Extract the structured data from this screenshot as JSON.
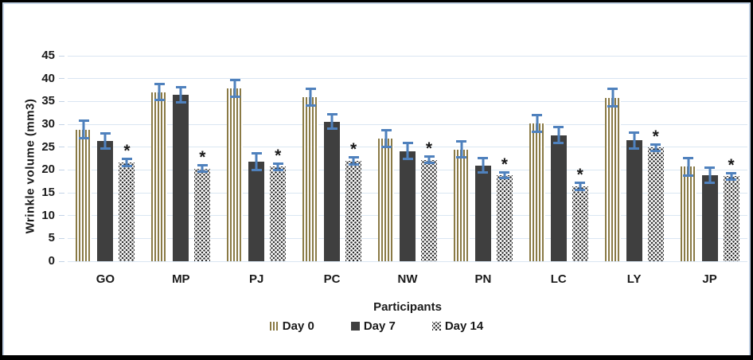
{
  "figure": {
    "border_color": "#000000",
    "inner_frame_color": "#c3d3e6",
    "background": "#ffffff"
  },
  "chart_data": {
    "type": "bar",
    "title": "",
    "xlabel": "Participants",
    "ylabel": "Wrinkle volume (mm3)",
    "ylim": [
      0,
      45
    ],
    "y_ticks": [
      0,
      5,
      10,
      15,
      20,
      25,
      30,
      35,
      40,
      45
    ],
    "grid": true,
    "legend_position": "bottom",
    "gridline_color": "#dae6f2",
    "error_bar_color": "#4f81bd",
    "significance_marker": "*",
    "categories": [
      "GO",
      "MP",
      "PJ",
      "PC",
      "NW",
      "PN",
      "LC",
      "LY",
      "JP"
    ],
    "series": [
      {
        "name": "Day 0",
        "pattern": "stripes",
        "color": "#8a7a45",
        "values": [
          28.8,
          37.0,
          37.8,
          36.0,
          26.8,
          24.5,
          30.1,
          35.8,
          20.7
        ],
        "errors": [
          2.2,
          2.0,
          2.1,
          2.1,
          2.1,
          2.0,
          2.1,
          2.2,
          2.2
        ],
        "significant": [
          false,
          false,
          false,
          false,
          false,
          false,
          false,
          false,
          false
        ]
      },
      {
        "name": "Day 7",
        "pattern": "solid",
        "color": "#3f3f3f",
        "values": [
          26.3,
          36.5,
          21.8,
          30.6,
          24.1,
          21.0,
          27.6,
          26.5,
          18.8
        ],
        "errors": [
          1.9,
          1.9,
          2.1,
          1.9,
          2.0,
          1.9,
          2.0,
          2.0,
          1.9
        ],
        "significant": [
          false,
          false,
          false,
          false,
          false,
          false,
          false,
          false,
          false
        ]
      },
      {
        "name": "Day 14",
        "pattern": "dots",
        "color": "#2b2b2b",
        "values": [
          21.6,
          20.3,
          20.7,
          22.0,
          22.2,
          18.8,
          16.4,
          24.9,
          18.6
        ],
        "errors": [
          1.0,
          0.9,
          1.0,
          1.0,
          1.0,
          0.9,
          1.0,
          1.0,
          1.0
        ],
        "significant": [
          true,
          true,
          true,
          true,
          true,
          true,
          true,
          true,
          true
        ]
      }
    ]
  }
}
